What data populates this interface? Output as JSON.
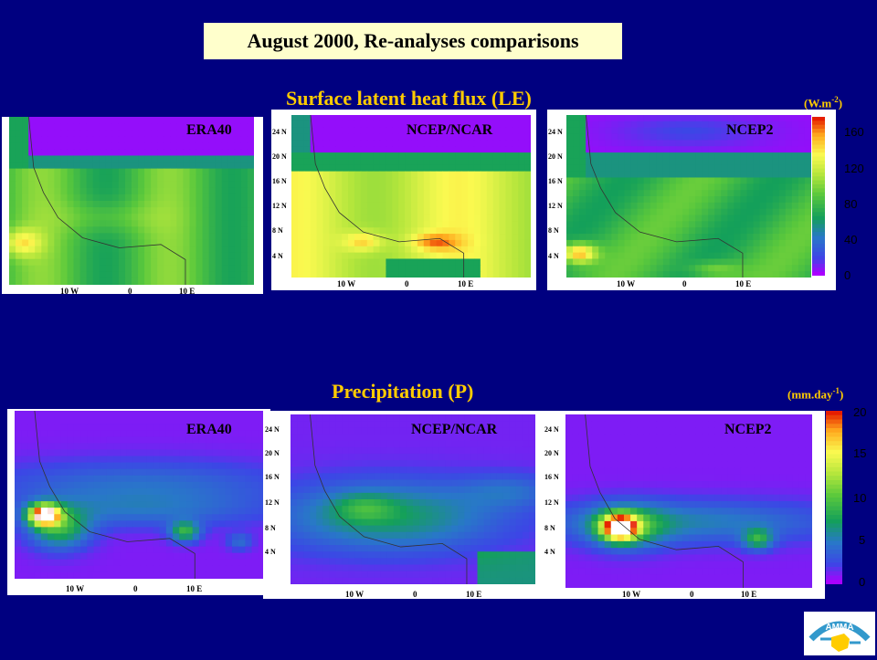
{
  "slide_title": "August 2000, Re-analyses comparisons",
  "chart_data": [
    {
      "type": "heatmap",
      "title": "Surface latent heat flux (LE)",
      "unit": "(W.m-2)",
      "unit_base": "(W.m",
      "unit_sup": "-2",
      "unit_close": ")",
      "colorbar": {
        "ticks": [
          "160",
          "120",
          "80",
          "40",
          "0"
        ],
        "range": [
          0,
          170
        ]
      },
      "panels": [
        {
          "name": "ERA40",
          "xticks": [
            "10 W",
            "0",
            "10 E"
          ],
          "yticks": []
        },
        {
          "name": "NCEP/NCAR",
          "xticks": [
            "10 W",
            "0",
            "10 E"
          ],
          "yticks": [
            "24 N",
            "20 N",
            "16 N",
            "12 N",
            "8 N",
            "4 N"
          ]
        },
        {
          "name": "NCEP2",
          "xticks": [
            "10 W",
            "0",
            "10 E"
          ],
          "yticks": [
            "24 N",
            "20 N",
            "16 N",
            "12 N",
            "8 N",
            "4 N"
          ]
        }
      ]
    },
    {
      "type": "heatmap",
      "title": "Precipitation (P)",
      "unit": "(mm.day-1)",
      "unit_base": "(mm.day",
      "unit_sup": "-1",
      "unit_close": ")",
      "colorbar": {
        "ticks": [
          "20",
          "15",
          "10",
          "5",
          "0"
        ],
        "range": [
          0,
          20
        ]
      },
      "panels": [
        {
          "name": "ERA40",
          "xticks": [
            "10 W",
            "0",
            "10 E"
          ],
          "yticks": []
        },
        {
          "name": "NCEP/NCAR",
          "xticks": [
            "10 W",
            "0",
            "10 E"
          ],
          "yticks": [
            "24 N",
            "20 N",
            "16 N",
            "12 N",
            "8 N",
            "4 N"
          ]
        },
        {
          "name": "NCEP2",
          "xticks": [
            "10 W",
            "0",
            "10 E"
          ],
          "yticks": [
            "24 N",
            "20 N",
            "16 N",
            "12 N",
            "8 N",
            "4 N"
          ]
        }
      ]
    }
  ],
  "logo_text": "AMMA"
}
